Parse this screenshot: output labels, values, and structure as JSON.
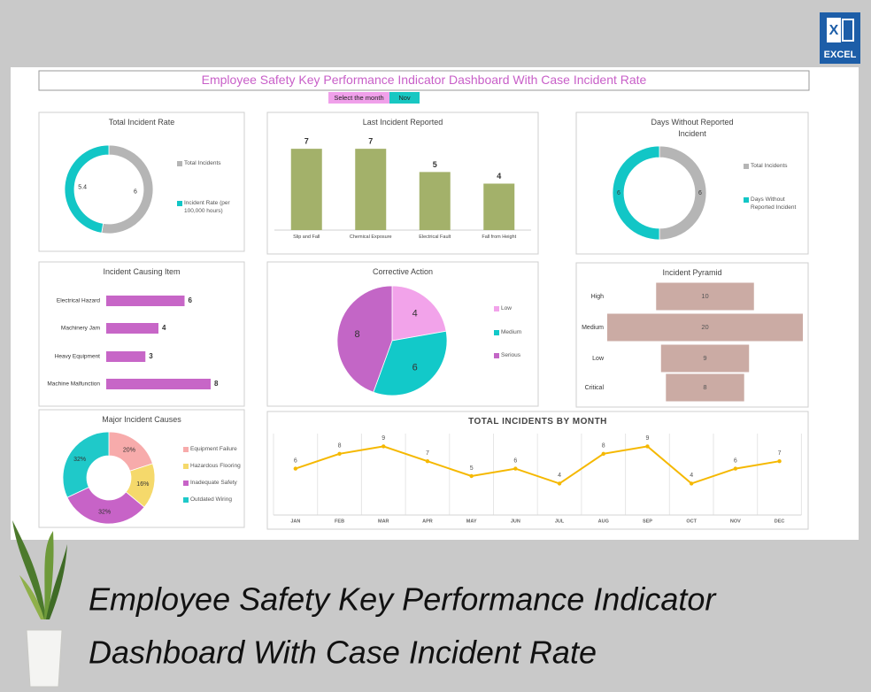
{
  "title": "Employee Safety Key Performance Indicator Dashboard With Case Incident Rate",
  "month_selector": {
    "label": "Select the month",
    "value": "Nov"
  },
  "badge": {
    "icon": "X",
    "text": "EXCEL"
  },
  "caption": [
    "Employee Safety Key Performance Indicator",
    "Dashboard With Case Incident Rate"
  ],
  "chart_data": [
    {
      "type": "donut",
      "title": "Total Incident Rate",
      "categories": [
        "Total Incidents",
        "Incident Rate (per 100,000 hours)"
      ],
      "values": [
        6,
        5.4
      ],
      "colors": [
        "#b5b5b5",
        "#12c6c6"
      ]
    },
    {
      "type": "bar",
      "title": "Last Incident Reported",
      "categories": [
        "Slip and Fall",
        "Chemical Exposure",
        "Electrical Fault",
        "Fall from Height"
      ],
      "values": [
        7,
        7,
        5,
        4
      ],
      "color": "#a3b16a",
      "ylim": [
        0,
        8
      ]
    },
    {
      "type": "donut",
      "title": "Days Without Reported Incident",
      "categories": [
        "Total Incidents",
        "Days Without Reported Incident"
      ],
      "values": [
        6,
        6
      ],
      "colors": [
        "#b5b5b5",
        "#12c6c6"
      ]
    },
    {
      "type": "hbar",
      "title": "Incident Causing Item",
      "categories": [
        "Electrical Hazard",
        "Machinery Jam",
        "Heavy Equipment",
        "Machine Malfunction"
      ],
      "values": [
        6,
        4,
        3,
        8
      ],
      "color": "#c766c7",
      "xlim": [
        0,
        8
      ]
    },
    {
      "type": "pie",
      "title": "Corrective Action",
      "categories": [
        "Low",
        "Medium",
        "Serious"
      ],
      "values": [
        4,
        6,
        8
      ],
      "colors": [
        "#f2a3ea",
        "#12c9c9",
        "#c366c6"
      ]
    },
    {
      "type": "funnel",
      "title": "Incident Pyramid",
      "categories": [
        "High",
        "Medium",
        "Low",
        "Critical"
      ],
      "values": [
        10,
        20,
        9,
        8
      ],
      "color": "#cbaba4",
      "xlim": [
        0,
        20
      ]
    },
    {
      "type": "donut",
      "title": "Major Incident Causes",
      "categories": [
        "Equipment Failure",
        "Hazardous Flooring",
        "Inadequate Safety",
        "Outdated Wiring"
      ],
      "values": [
        20,
        16,
        32,
        32
      ],
      "value_labels": [
        "20%",
        "16%",
        "32%",
        "32%"
      ],
      "colors": [
        "#f7abab",
        "#f5d96b",
        "#c763c7",
        "#1fc9c9"
      ]
    },
    {
      "type": "line",
      "title": "TOTAL INCIDENTS BY MONTH",
      "categories": [
        "JAN",
        "FEB",
        "MAR",
        "APR",
        "MAY",
        "JUN",
        "JUL",
        "AUG",
        "SEP",
        "OCT",
        "NOV",
        "DEC"
      ],
      "values": [
        6,
        8,
        9,
        7,
        5,
        6,
        4,
        8,
        9,
        4,
        6,
        7
      ],
      "color": "#f5b800",
      "ylim": [
        0,
        10
      ]
    }
  ]
}
